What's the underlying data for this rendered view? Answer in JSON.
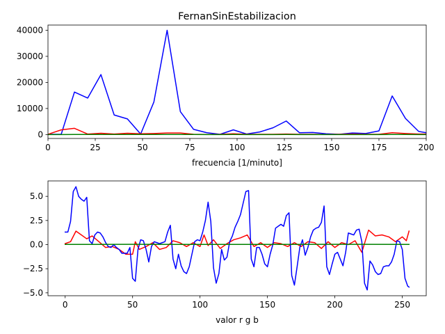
{
  "chart_data": [
    {
      "type": "line",
      "title": "FernanSinEstabilizacion",
      "xlabel": "frecuencia [1/minuto]",
      "ylabel": "",
      "xlim": [
        0,
        200
      ],
      "ylim": [
        -1500,
        42000
      ],
      "xticks": [
        0,
        25,
        50,
        75,
        100,
        125,
        150,
        175,
        200
      ],
      "xtick_labels": [
        "0",
        "25",
        "50",
        "75",
        "100",
        "125",
        "150",
        "175",
        "200"
      ],
      "yticks": [
        0,
        10000,
        20000,
        30000,
        40000
      ],
      "ytick_labels": [
        "0",
        "10000",
        "20000",
        "30000",
        "40000"
      ],
      "grid": false,
      "series": [
        {
          "color": "#0000ff",
          "x": [
            0,
            7,
            14,
            21,
            28,
            35,
            42,
            49,
            56,
            63,
            70,
            77,
            84,
            91,
            98,
            105,
            112,
            119,
            126,
            133,
            140,
            147,
            154,
            161,
            168,
            175,
            182,
            189,
            196,
            200
          ],
          "y": [
            100,
            100,
            16300,
            14000,
            23000,
            7500,
            6000,
            200,
            12500,
            40000,
            8800,
            2000,
            700,
            100,
            1800,
            200,
            1000,
            2600,
            5200,
            700,
            800,
            300,
            100,
            600,
            400,
            1400,
            14800,
            6200,
            1200,
            700
          ]
        },
        {
          "color": "#ff0000",
          "x": [
            0,
            7,
            14,
            21,
            28,
            35,
            42,
            49,
            56,
            63,
            70,
            77,
            84,
            91,
            98,
            105,
            112,
            119,
            126,
            133,
            140,
            147,
            154,
            161,
            168,
            175,
            182,
            189,
            196,
            200
          ],
          "y": [
            100,
            1800,
            2400,
            200,
            500,
            200,
            500,
            300,
            400,
            600,
            600,
            100,
            50,
            100,
            300,
            100,
            100,
            100,
            200,
            100,
            100,
            50,
            100,
            200,
            100,
            100,
            700,
            400,
            200,
            200
          ]
        },
        {
          "color": "#008000",
          "x": [
            0,
            7,
            14,
            21,
            28,
            35,
            42,
            49,
            56,
            63,
            70,
            77,
            84,
            91,
            98,
            105,
            112,
            119,
            126,
            133,
            140,
            147,
            154,
            161,
            168,
            175,
            182,
            189,
            196,
            200
          ],
          "y": [
            0,
            0,
            50,
            30,
            40,
            20,
            30,
            20,
            20,
            40,
            30,
            20,
            10,
            10,
            20,
            10,
            10,
            10,
            20,
            10,
            10,
            5,
            5,
            10,
            10,
            10,
            40,
            20,
            10,
            10
          ]
        }
      ]
    },
    {
      "type": "line",
      "title": "",
      "xlabel": "valor r g b",
      "ylabel": "",
      "xlim": [
        -12.75,
        267.75
      ],
      "ylim": [
        -5.3,
        6.6
      ],
      "xticks": [
        0,
        50,
        100,
        150,
        200,
        250
      ],
      "xtick_labels": [
        "0",
        "50",
        "100",
        "150",
        "200",
        "250"
      ],
      "yticks": [
        -5.0,
        -2.5,
        0.0,
        2.5,
        5.0
      ],
      "ytick_labels": [
        "−5.0",
        "−2.5",
        "0.0",
        "2.5",
        "5.0"
      ],
      "grid": false,
      "series": [
        {
          "color": "#ff0000",
          "x": [
            0,
            4,
            8,
            12,
            16,
            20,
            25,
            30,
            35,
            40,
            45,
            50,
            52,
            55,
            60,
            65,
            70,
            75,
            80,
            85,
            90,
            95,
            100,
            103,
            106,
            110,
            115,
            120,
            125,
            130,
            135,
            140,
            145,
            150,
            155,
            160,
            165,
            170,
            175,
            180,
            185,
            190,
            195,
            200,
            205,
            210,
            215,
            220,
            225,
            230,
            235,
            240,
            245,
            250,
            253,
            255
          ],
          "y": [
            0.1,
            0.3,
            1.4,
            1.0,
            0.6,
            0.9,
            0.3,
            -0.3,
            -0.2,
            -0.5,
            -1.0,
            -1.0,
            0.3,
            -0.5,
            -0.2,
            0.2,
            -0.5,
            -0.3,
            0.4,
            0.2,
            -0.2,
            0.2,
            -0.2,
            1.0,
            -0.1,
            0.5,
            -0.4,
            0.1,
            0.5,
            0.7,
            1.0,
            -0.2,
            0.2,
            -0.3,
            0.2,
            0.1,
            -0.2,
            0.2,
            -0.2,
            0.3,
            0.2,
            -0.4,
            0.3,
            -0.3,
            0.2,
            0.0,
            0.4,
            -0.8,
            1.5,
            0.9,
            1.0,
            0.8,
            0.3,
            0.8,
            0.4,
            1.4
          ]
        },
        {
          "color": "#0000ff",
          "x": [
            0,
            2,
            4,
            6,
            8,
            10,
            12,
            14,
            16,
            18,
            20,
            22,
            24,
            26,
            28,
            30,
            32,
            34,
            36,
            38,
            40,
            42,
            44,
            46,
            48,
            50,
            52,
            54,
            56,
            58,
            60,
            62,
            64,
            66,
            68,
            70,
            72,
            74,
            76,
            78,
            80,
            82,
            84,
            86,
            88,
            90,
            92,
            94,
            96,
            98,
            100,
            102,
            104,
            106,
            108,
            110,
            112,
            114,
            116,
            118,
            120,
            122,
            124,
            126,
            128,
            130,
            132,
            134,
            136,
            138,
            140,
            142,
            144,
            146,
            148,
            150,
            152,
            154,
            156,
            158,
            160,
            162,
            164,
            166,
            168,
            170,
            172,
            174,
            176,
            178,
            180,
            182,
            184,
            186,
            188,
            190,
            192,
            194,
            196,
            198,
            200,
            202,
            204,
            206,
            208,
            210,
            212,
            214,
            216,
            218,
            220,
            222,
            224,
            226,
            228,
            230,
            232,
            234,
            236,
            238,
            240,
            242,
            244,
            246,
            248,
            250,
            252,
            254,
            255
          ],
          "y": [
            1.3,
            1.3,
            2.4,
            5.5,
            6.0,
            5.0,
            4.7,
            4.5,
            4.9,
            0.4,
            0.1,
            1.0,
            1.3,
            1.2,
            0.8,
            0.2,
            -0.2,
            -0.3,
            0.0,
            -0.3,
            -0.5,
            -0.9,
            -0.9,
            -0.9,
            -0.3,
            -3.5,
            -3.8,
            -0.5,
            0.5,
            0.4,
            -0.5,
            -1.8,
            -0.2,
            0.3,
            0.2,
            0.1,
            0.2,
            0.3,
            1.3,
            2.0,
            -1.5,
            -2.5,
            -1.0,
            -2.2,
            -2.8,
            -3.0,
            -2.3,
            -1.0,
            0.3,
            0.5,
            0.4,
            1.3,
            2.5,
            4.4,
            2.4,
            -2.4,
            -4.0,
            -3.0,
            -0.5,
            -1.6,
            -1.3,
            0.3,
            0.9,
            1.8,
            2.4,
            3.1,
            4.3,
            5.5,
            5.6,
            -1.5,
            -2.3,
            -0.3,
            -0.3,
            -1.0,
            -2.0,
            -2.3,
            -1.0,
            0.0,
            1.7,
            1.9,
            2.1,
            1.9,
            3.0,
            3.3,
            -3.2,
            -4.2,
            -2.3,
            -0.3,
            0.5,
            -1.1,
            -0.3,
            0.8,
            1.5,
            1.7,
            1.8,
            2.3,
            4.0,
            -2.3,
            -3.1,
            -2.0,
            -1.0,
            -0.8,
            -1.5,
            -2.2,
            -0.8,
            1.2,
            1.1,
            1.0,
            1.5,
            1.6,
            0.3,
            -4.0,
            -4.7,
            -1.7,
            -2.1,
            -2.8,
            -3.1,
            -3.0,
            -2.3,
            -2.2,
            -2.2,
            -1.8,
            -1.0,
            0.4,
            0.3,
            -0.5,
            -3.5,
            -4.3,
            -4.4
          ]
        },
        {
          "color": "#008000",
          "x": [
            0,
            50,
            100,
            150,
            200,
            255
          ],
          "y": [
            0.02,
            0.03,
            0.02,
            0.02,
            0.03,
            0.02
          ]
        }
      ]
    }
  ]
}
